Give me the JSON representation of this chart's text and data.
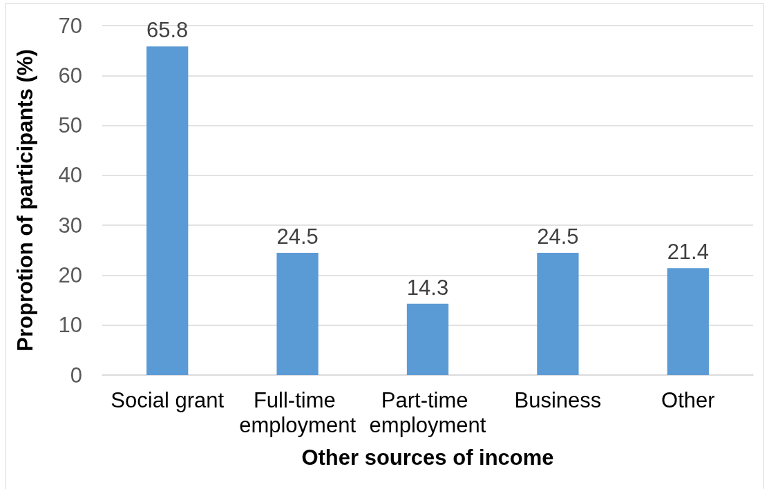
{
  "chart_data": {
    "type": "bar",
    "xlabel": "Other sources of income",
    "ylabel": "Proprotion of participants (%)",
    "categories": [
      "Social grant",
      "Full-time employment",
      "Part-time employment",
      "Business",
      "Other"
    ],
    "values": [
      65.8,
      24.5,
      14.3,
      24.5,
      21.4
    ],
    "color": "#5b9bd5",
    "ylim": [
      0,
      70
    ],
    "yticks": [
      0,
      10,
      20,
      30,
      40,
      50,
      60,
      70
    ],
    "grid": "y",
    "data_labels": true
  }
}
